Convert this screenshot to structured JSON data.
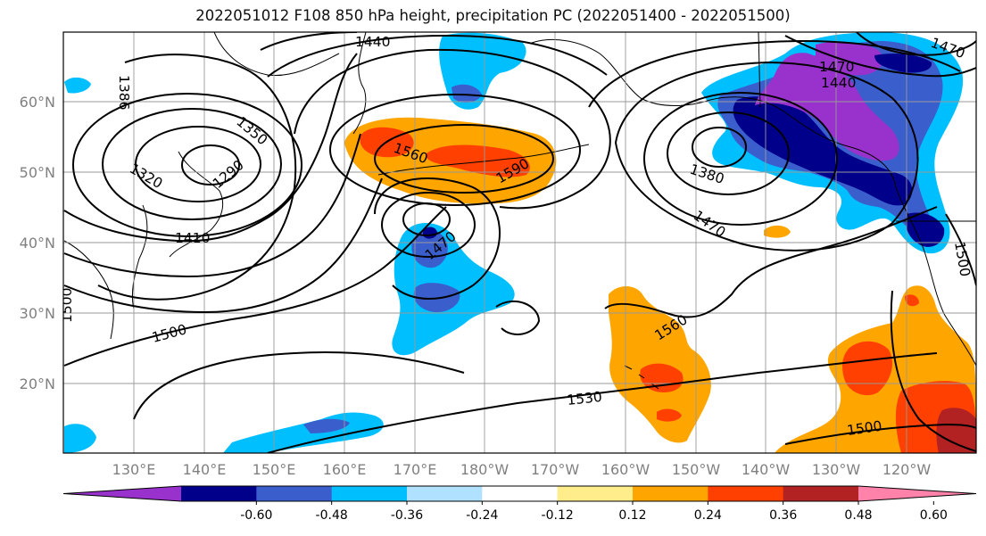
{
  "title": "2022051012 F108 850 hPa height, precipitation PC (2022051400 - 2022051500)",
  "lat_labels": [
    "60°N",
    "50°N",
    "40°N",
    "30°N",
    "20°N"
  ],
  "lon_labels": [
    "130°E",
    "140°E",
    "150°E",
    "160°E",
    "170°E",
    "180°W",
    "170°W",
    "160°W",
    "150°W",
    "140°W",
    "130°W",
    "120°W"
  ],
  "contour_labels": [
    "1440",
    "1470",
    "1440",
    "1386",
    "1350",
    "1320",
    "1290",
    "1410",
    "1560",
    "1590",
    "1470",
    "1380",
    "1470",
    "1500",
    "1500",
    "1560",
    "1530",
    "1500",
    "1500",
    "1470"
  ],
  "colorbar": {
    "ticks": [
      "-0.60",
      "-0.48",
      "-0.36",
      "-0.24",
      "-0.12",
      "0.12",
      "0.24",
      "0.36",
      "0.48",
      "0.60"
    ],
    "colors": [
      "#9932cc",
      "#00008b",
      "#3a5fcd",
      "#00bfff",
      "#b0e2ff",
      "#ffffff",
      "#ffec8b",
      "#ffa500",
      "#ff4000",
      "#b22222",
      "#ff82ab"
    ]
  },
  "colors": {
    "frame": "#000000",
    "grid": "#999999",
    "tick_label": "#808080"
  }
}
